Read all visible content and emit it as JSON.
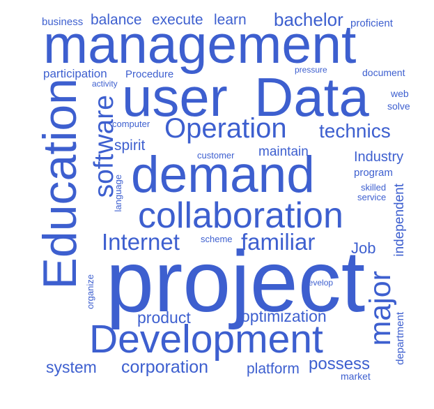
{
  "word_cloud": {
    "color": "#3d5fcf",
    "words": {
      "business": "business",
      "balance": "balance",
      "execute": "execute",
      "learn": "learn",
      "bachelor": "bachelor",
      "proficient": "proficient",
      "management": "management",
      "participation": "participation",
      "procedure": "Procedure",
      "activity": "activity",
      "pressure": "pressure",
      "document": "document",
      "user": "user",
      "data": "Data",
      "web": "web",
      "solve": "solve",
      "education": "Education",
      "software": "software",
      "computer": "computer",
      "operation": "Operation",
      "technics": "technics",
      "spirit": "spirit",
      "customer": "customer",
      "maintain": "maintain",
      "industry": "Industry",
      "demand": "demand",
      "program": "program",
      "language": "language",
      "skilled": "skilled",
      "service": "service",
      "independent": "independent",
      "collaboration": "collaboration",
      "internet": "Internet",
      "scheme": "scheme",
      "familiar": "familiar",
      "job": "Job",
      "project": "project",
      "develop": "develop",
      "organize": "organize",
      "major": "major",
      "product": "product",
      "optimization": "optimization",
      "department": "department",
      "development": "Development",
      "system": "system",
      "corporation": "corporation",
      "platform": "platform",
      "possess": "possess",
      "market": "market"
    }
  }
}
